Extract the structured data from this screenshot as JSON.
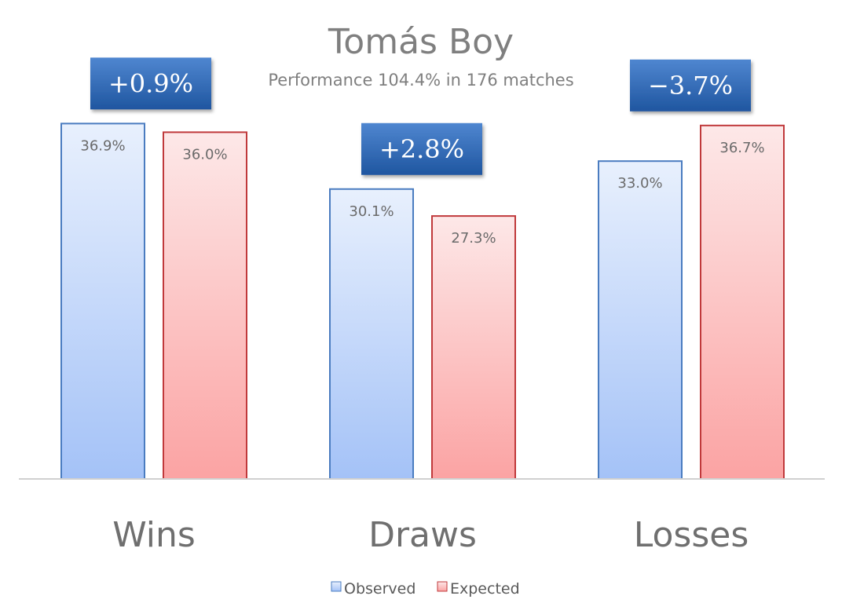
{
  "chart_data": {
    "type": "bar",
    "title": "Tomás Boy",
    "subtitle": "Performance 104.4% in 176 matches",
    "categories": [
      "Wins",
      "Draws",
      "Losses"
    ],
    "series": [
      {
        "name": "Observed",
        "values": [
          36.9,
          30.1,
          33.0
        ],
        "labels": [
          "36.9%",
          "30.1%",
          "33.0%"
        ]
      },
      {
        "name": "Expected",
        "values": [
          36.0,
          27.3,
          36.7
        ],
        "labels": [
          "36.0%",
          "27.3%",
          "36.7%"
        ]
      }
    ],
    "differences": [
      "+0.9%",
      "+2.8%",
      "−3.7%"
    ],
    "ylim": [
      0,
      37.5
    ],
    "grid": false,
    "legend_position": "bottom",
    "colors": {
      "observed_fill_top": "#e8f0fd",
      "observed_fill_bottom": "#a4c2f7",
      "observed_stroke": "#4a7cc0",
      "expected_fill_top": "#fde8e8",
      "expected_fill_bottom": "#fba3a3",
      "expected_stroke": "#c0393b",
      "diff_box_top": "#4f86d0",
      "diff_box_bottom": "#1f56a0",
      "axis": "#d0d0d0"
    }
  }
}
